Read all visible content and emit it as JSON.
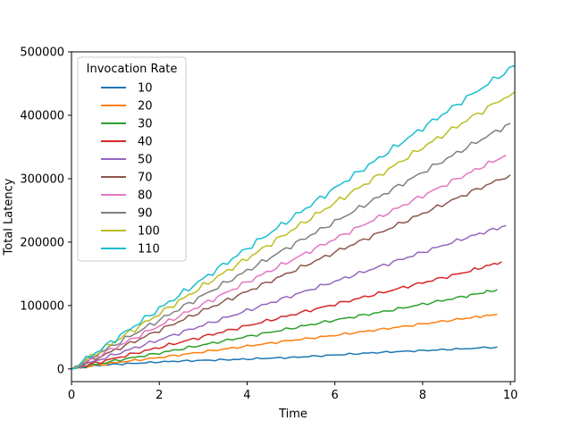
{
  "chart_data": {
    "type": "line",
    "title": "",
    "xlabel": "Time",
    "ylabel": "Total Latency",
    "xlim": [
      0,
      10.1
    ],
    "ylim": [
      -20000,
      500000
    ],
    "xticks": [
      0,
      2,
      4,
      6,
      8,
      10
    ],
    "yticks": [
      0,
      100000,
      200000,
      300000,
      400000,
      500000
    ],
    "grid": false,
    "legend": {
      "title": "Invocation Rate",
      "position": "top-left"
    },
    "series": [
      {
        "name": "10",
        "color": "#1f77b4",
        "x": [
          0,
          0.5,
          1,
          1.5,
          2,
          2.5,
          3,
          3.5,
          4,
          4.5,
          5,
          5.5,
          6,
          6.5,
          7,
          7.5,
          8,
          8.5,
          9,
          9.7
        ],
        "y": [
          0,
          5000,
          7500,
          9000,
          11000,
          12500,
          13500,
          14500,
          15500,
          17000,
          18000,
          20000,
          22000,
          24000,
          26000,
          27500,
          29000,
          30500,
          32000,
          34500
        ]
      },
      {
        "name": "20",
        "color": "#ff7f0e",
        "x": [
          0,
          1,
          2,
          3,
          4,
          5,
          6,
          7,
          8,
          9,
          9.7
        ],
        "y": [
          0,
          10000,
          18000,
          27000,
          36000,
          45000,
          53000,
          62000,
          71000,
          80000,
          86000
        ]
      },
      {
        "name": "30",
        "color": "#2ca02c",
        "x": [
          0,
          1,
          2,
          3,
          4,
          5,
          6,
          7,
          8,
          9,
          9.7
        ],
        "y": [
          0,
          13000,
          25000,
          38000,
          51000,
          64000,
          77000,
          89000,
          102000,
          115000,
          125000
        ]
      },
      {
        "name": "40",
        "color": "#d62728",
        "x": [
          0,
          1,
          2,
          3,
          4,
          5,
          6,
          7,
          8,
          9,
          9.8
        ],
        "y": [
          0,
          17000,
          34000,
          51000,
          68000,
          85000,
          102000,
          119000,
          136000,
          153000,
          169000
        ]
      },
      {
        "name": "50",
        "color": "#9467bd",
        "x": [
          0,
          1,
          2,
          3,
          4,
          5,
          6,
          7,
          8,
          9,
          9.9
        ],
        "y": [
          0,
          23000,
          46000,
          69000,
          92000,
          115000,
          138000,
          161000,
          184000,
          207000,
          226000
        ]
      },
      {
        "name": "70",
        "color": "#8c564b",
        "x": [
          0,
          1,
          2,
          3,
          4,
          5,
          6,
          7,
          8,
          9,
          10
        ],
        "y": [
          0,
          30000,
          61000,
          92000,
          122000,
          153000,
          184000,
          214000,
          245000,
          276000,
          306000
        ]
      },
      {
        "name": "80",
        "color": "#e377c2",
        "x": [
          0,
          1,
          2,
          3,
          4,
          5,
          6,
          7,
          8,
          9,
          9.9
        ],
        "y": [
          0,
          34000,
          68000,
          102000,
          137000,
          171000,
          205000,
          239000,
          273000,
          307000,
          337000
        ]
      },
      {
        "name": "90",
        "color": "#7f7f7f",
        "x": [
          0,
          1,
          2,
          3,
          4,
          5,
          6,
          7,
          8,
          9,
          10
        ],
        "y": [
          0,
          39000,
          77000,
          116000,
          155000,
          194000,
          232000,
          271000,
          310000,
          349000,
          387000
        ]
      },
      {
        "name": "100",
        "color": "#bcbd22",
        "x": [
          0,
          1,
          2,
          3,
          4,
          5,
          6,
          7,
          8,
          9,
          10.1
        ],
        "y": [
          0,
          44000,
          87000,
          131000,
          174000,
          218000,
          262000,
          305000,
          349000,
          392000,
          437000
        ]
      },
      {
        "name": "110",
        "color": "#17becf",
        "x": [
          0,
          1,
          2,
          3,
          4,
          5,
          6,
          7,
          8,
          9,
          10.1
        ],
        "y": [
          0,
          47000,
          95000,
          142000,
          190000,
          237000,
          285000,
          332000,
          380000,
          427000,
          478000
        ]
      }
    ]
  }
}
